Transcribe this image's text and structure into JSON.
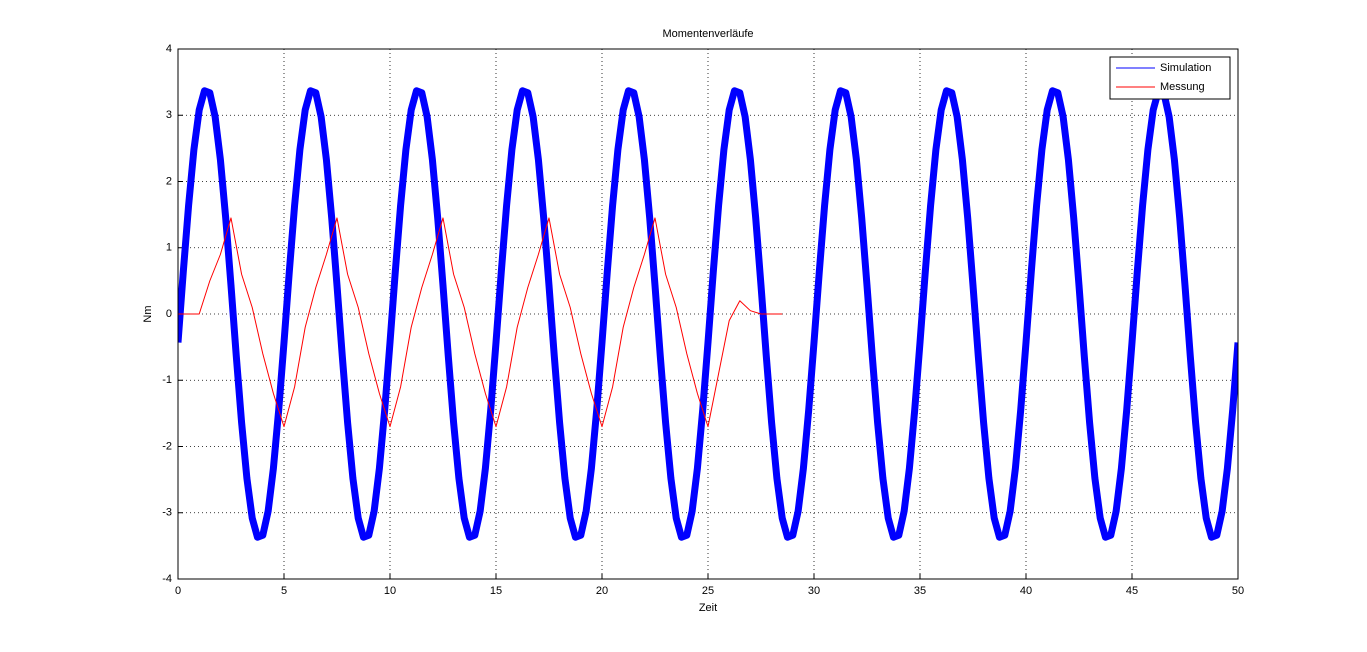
{
  "chart_data": {
    "type": "line",
    "title": "Momentenverläufe",
    "x_label": "Zeit",
    "y_label": "Nm",
    "xlim": [
      0,
      50
    ],
    "xticks": [
      0,
      5,
      10,
      15,
      20,
      25,
      30,
      35,
      40,
      45,
      50
    ],
    "ylim": [
      -4,
      4
    ],
    "yticks": [
      -4,
      -3,
      -2,
      -1,
      0,
      1,
      2,
      3,
      4
    ],
    "grid": true,
    "legend": "top-right",
    "series": [
      {
        "name": "Simulation",
        "color": "#0000ff",
        "x": [
          0,
          0.25,
          0.5,
          0.75,
          1,
          1.25,
          1.5,
          1.75,
          2,
          2.25,
          2.5,
          2.75,
          3,
          3.25,
          3.5,
          3.75,
          4,
          4.25,
          4.5,
          4.75,
          5,
          5.25,
          5.5,
          5.75,
          6,
          6.25,
          6.5,
          6.75,
          7,
          7.25,
          7.5,
          7.75,
          8,
          8.25,
          8.5,
          8.75,
          9,
          9.25,
          9.5,
          9.75,
          10,
          10.25,
          10.5,
          10.75,
          11,
          11.25,
          11.5,
          11.75,
          12,
          12.25,
          12.5,
          12.75,
          13,
          13.25,
          13.5,
          13.75,
          14,
          14.25,
          14.5,
          14.75,
          15,
          15.25,
          15.5,
          15.75,
          16,
          16.25,
          16.5,
          16.75,
          17,
          17.25,
          17.5,
          17.75,
          18,
          18.25,
          18.5,
          18.75,
          19,
          19.25,
          19.5,
          19.75,
          20,
          20.25,
          20.5,
          20.75,
          21,
          21.25,
          21.5,
          21.75,
          22,
          22.25,
          22.5,
          22.75,
          23,
          23.25,
          23.5,
          23.75,
          24,
          24.25,
          24.5,
          24.75,
          25,
          25.25,
          25.5,
          25.75,
          26,
          26.25,
          26.5,
          26.75,
          27,
          27.25,
          27.5,
          27.75,
          28,
          28.25,
          28.5,
          28.75,
          29,
          29.25,
          29.5,
          29.75,
          30,
          30.25,
          30.5,
          30.75,
          31,
          31.25,
          31.5,
          31.75,
          32,
          32.25,
          32.5,
          32.75,
          33,
          33.25,
          33.5,
          33.75,
          34,
          34.25,
          34.5,
          34.75,
          35,
          35.25,
          35.5,
          35.75,
          36,
          36.25,
          36.5,
          36.75,
          37,
          37.25,
          37.5,
          37.75,
          38,
          38.25,
          38.5,
          38.75,
          39,
          39.25,
          39.5,
          39.75,
          40,
          40.25,
          40.5,
          40.75,
          41,
          41.25,
          41.5,
          41.75,
          42,
          42.25,
          42.5,
          42.75,
          43,
          43.25,
          43.5,
          43.75,
          44,
          44.25,
          44.5,
          44.75,
          45,
          45.25,
          45.5,
          45.75,
          46,
          46.25,
          46.5,
          46.75,
          47,
          47.25,
          47.5,
          47.75,
          48,
          48.25,
          48.5,
          48.75,
          49,
          49.25,
          49.5,
          49.75,
          50
        ],
        "values": [
          -0.43,
          0.64,
          1.64,
          2.48,
          3.08,
          3.37,
          3.34,
          2.98,
          2.33,
          1.45,
          0.43,
          -0.64,
          -1.64,
          -2.48,
          -3.08,
          -3.37,
          -3.34,
          -2.98,
          -2.33,
          -1.45,
          -0.43,
          0.64,
          1.64,
          2.48,
          3.08,
          3.37,
          3.34,
          2.98,
          2.33,
          1.45,
          0.43,
          -0.64,
          -1.64,
          -2.48,
          -3.08,
          -3.37,
          -3.34,
          -2.98,
          -2.33,
          -1.45,
          -0.43,
          0.64,
          1.64,
          2.48,
          3.08,
          3.37,
          3.34,
          2.98,
          2.33,
          1.45,
          0.43,
          -0.64,
          -1.64,
          -2.48,
          -3.08,
          -3.37,
          -3.34,
          -2.98,
          -2.33,
          -1.45,
          -0.43,
          0.64,
          1.64,
          2.48,
          3.08,
          3.37,
          3.34,
          2.98,
          2.33,
          1.45,
          0.43,
          -0.64,
          -1.64,
          -2.48,
          -3.08,
          -3.37,
          -3.34,
          -2.98,
          -2.33,
          -1.45,
          -0.43,
          0.64,
          1.64,
          2.48,
          3.08,
          3.37,
          3.34,
          2.98,
          2.33,
          1.45,
          0.43,
          -0.64,
          -1.64,
          -2.48,
          -3.08,
          -3.37,
          -3.34,
          -2.98,
          -2.33,
          -1.45,
          -0.43,
          0.64,
          1.64,
          2.48,
          3.08,
          3.37,
          3.34,
          2.98,
          2.33,
          1.45,
          0.43,
          -0.64,
          -1.64,
          -2.48,
          -3.08,
          -3.37,
          -3.34,
          -2.98,
          -2.33,
          -1.45,
          -0.43,
          0.64,
          1.64,
          2.48,
          3.08,
          3.37,
          3.34,
          2.98,
          2.33,
          1.45,
          0.43,
          -0.64,
          -1.64,
          -2.48,
          -3.08,
          -3.37,
          -3.34,
          -2.98,
          -2.33,
          -1.45,
          -0.43,
          0.64,
          1.64,
          2.48,
          3.08,
          3.37,
          3.34,
          2.98,
          2.33,
          1.45,
          0.43,
          -0.64,
          -1.64,
          -2.48,
          -3.08,
          -3.37,
          -3.34,
          -2.98,
          -2.33,
          -1.45,
          -0.43,
          0.64,
          1.64,
          2.48,
          3.08,
          3.37,
          3.34,
          2.98,
          2.33,
          1.45,
          0.43,
          -0.64,
          -1.64,
          -2.48,
          -3.08,
          -3.37,
          -3.34,
          -2.98,
          -2.33,
          -1.45,
          -0.43,
          0.64,
          1.64,
          2.48,
          3.08,
          3.37,
          3.34,
          2.98,
          2.33,
          1.45,
          0.43,
          -0.64,
          -1.64,
          -2.48,
          -3.08,
          -3.37,
          -3.34,
          -2.98,
          -2.33,
          -1.45,
          -0.43
        ]
      },
      {
        "name": "Messung",
        "color": "#ff0000",
        "x": [
          0,
          0.5,
          1,
          1.5,
          2,
          2.5,
          3,
          3.5,
          4,
          4.5,
          5,
          5.5,
          6,
          6.5,
          7,
          7.5,
          8,
          8.5,
          9,
          9.5,
          10,
          10.5,
          11,
          11.5,
          12,
          12.5,
          13,
          13.5,
          14,
          14.5,
          15,
          15.5,
          16,
          16.5,
          17,
          17.5,
          18,
          18.5,
          19,
          19.5,
          20,
          20.5,
          21,
          21.5,
          22,
          22.5,
          23,
          23.5,
          24,
          24.5,
          25,
          25.5,
          26,
          26.5,
          27,
          27.5,
          28,
          28.5
        ],
        "values": [
          0,
          0,
          0,
          0.5,
          0.9,
          1.45,
          0.6,
          0.1,
          -0.6,
          -1.2,
          -1.7,
          -1.1,
          -0.2,
          0.4,
          0.9,
          1.45,
          0.6,
          0.1,
          -0.6,
          -1.2,
          -1.7,
          -1.1,
          -0.2,
          0.4,
          0.9,
          1.45,
          0.6,
          0.1,
          -0.6,
          -1.2,
          -1.7,
          -1.1,
          -0.2,
          0.4,
          0.9,
          1.45,
          0.6,
          0.1,
          -0.6,
          -1.2,
          -1.7,
          -1.1,
          -0.2,
          0.4,
          0.9,
          1.45,
          0.6,
          0.1,
          -0.6,
          -1.2,
          -1.7,
          -0.9,
          -0.1,
          0.2,
          0.05,
          0,
          0,
          0
        ]
      }
    ]
  }
}
